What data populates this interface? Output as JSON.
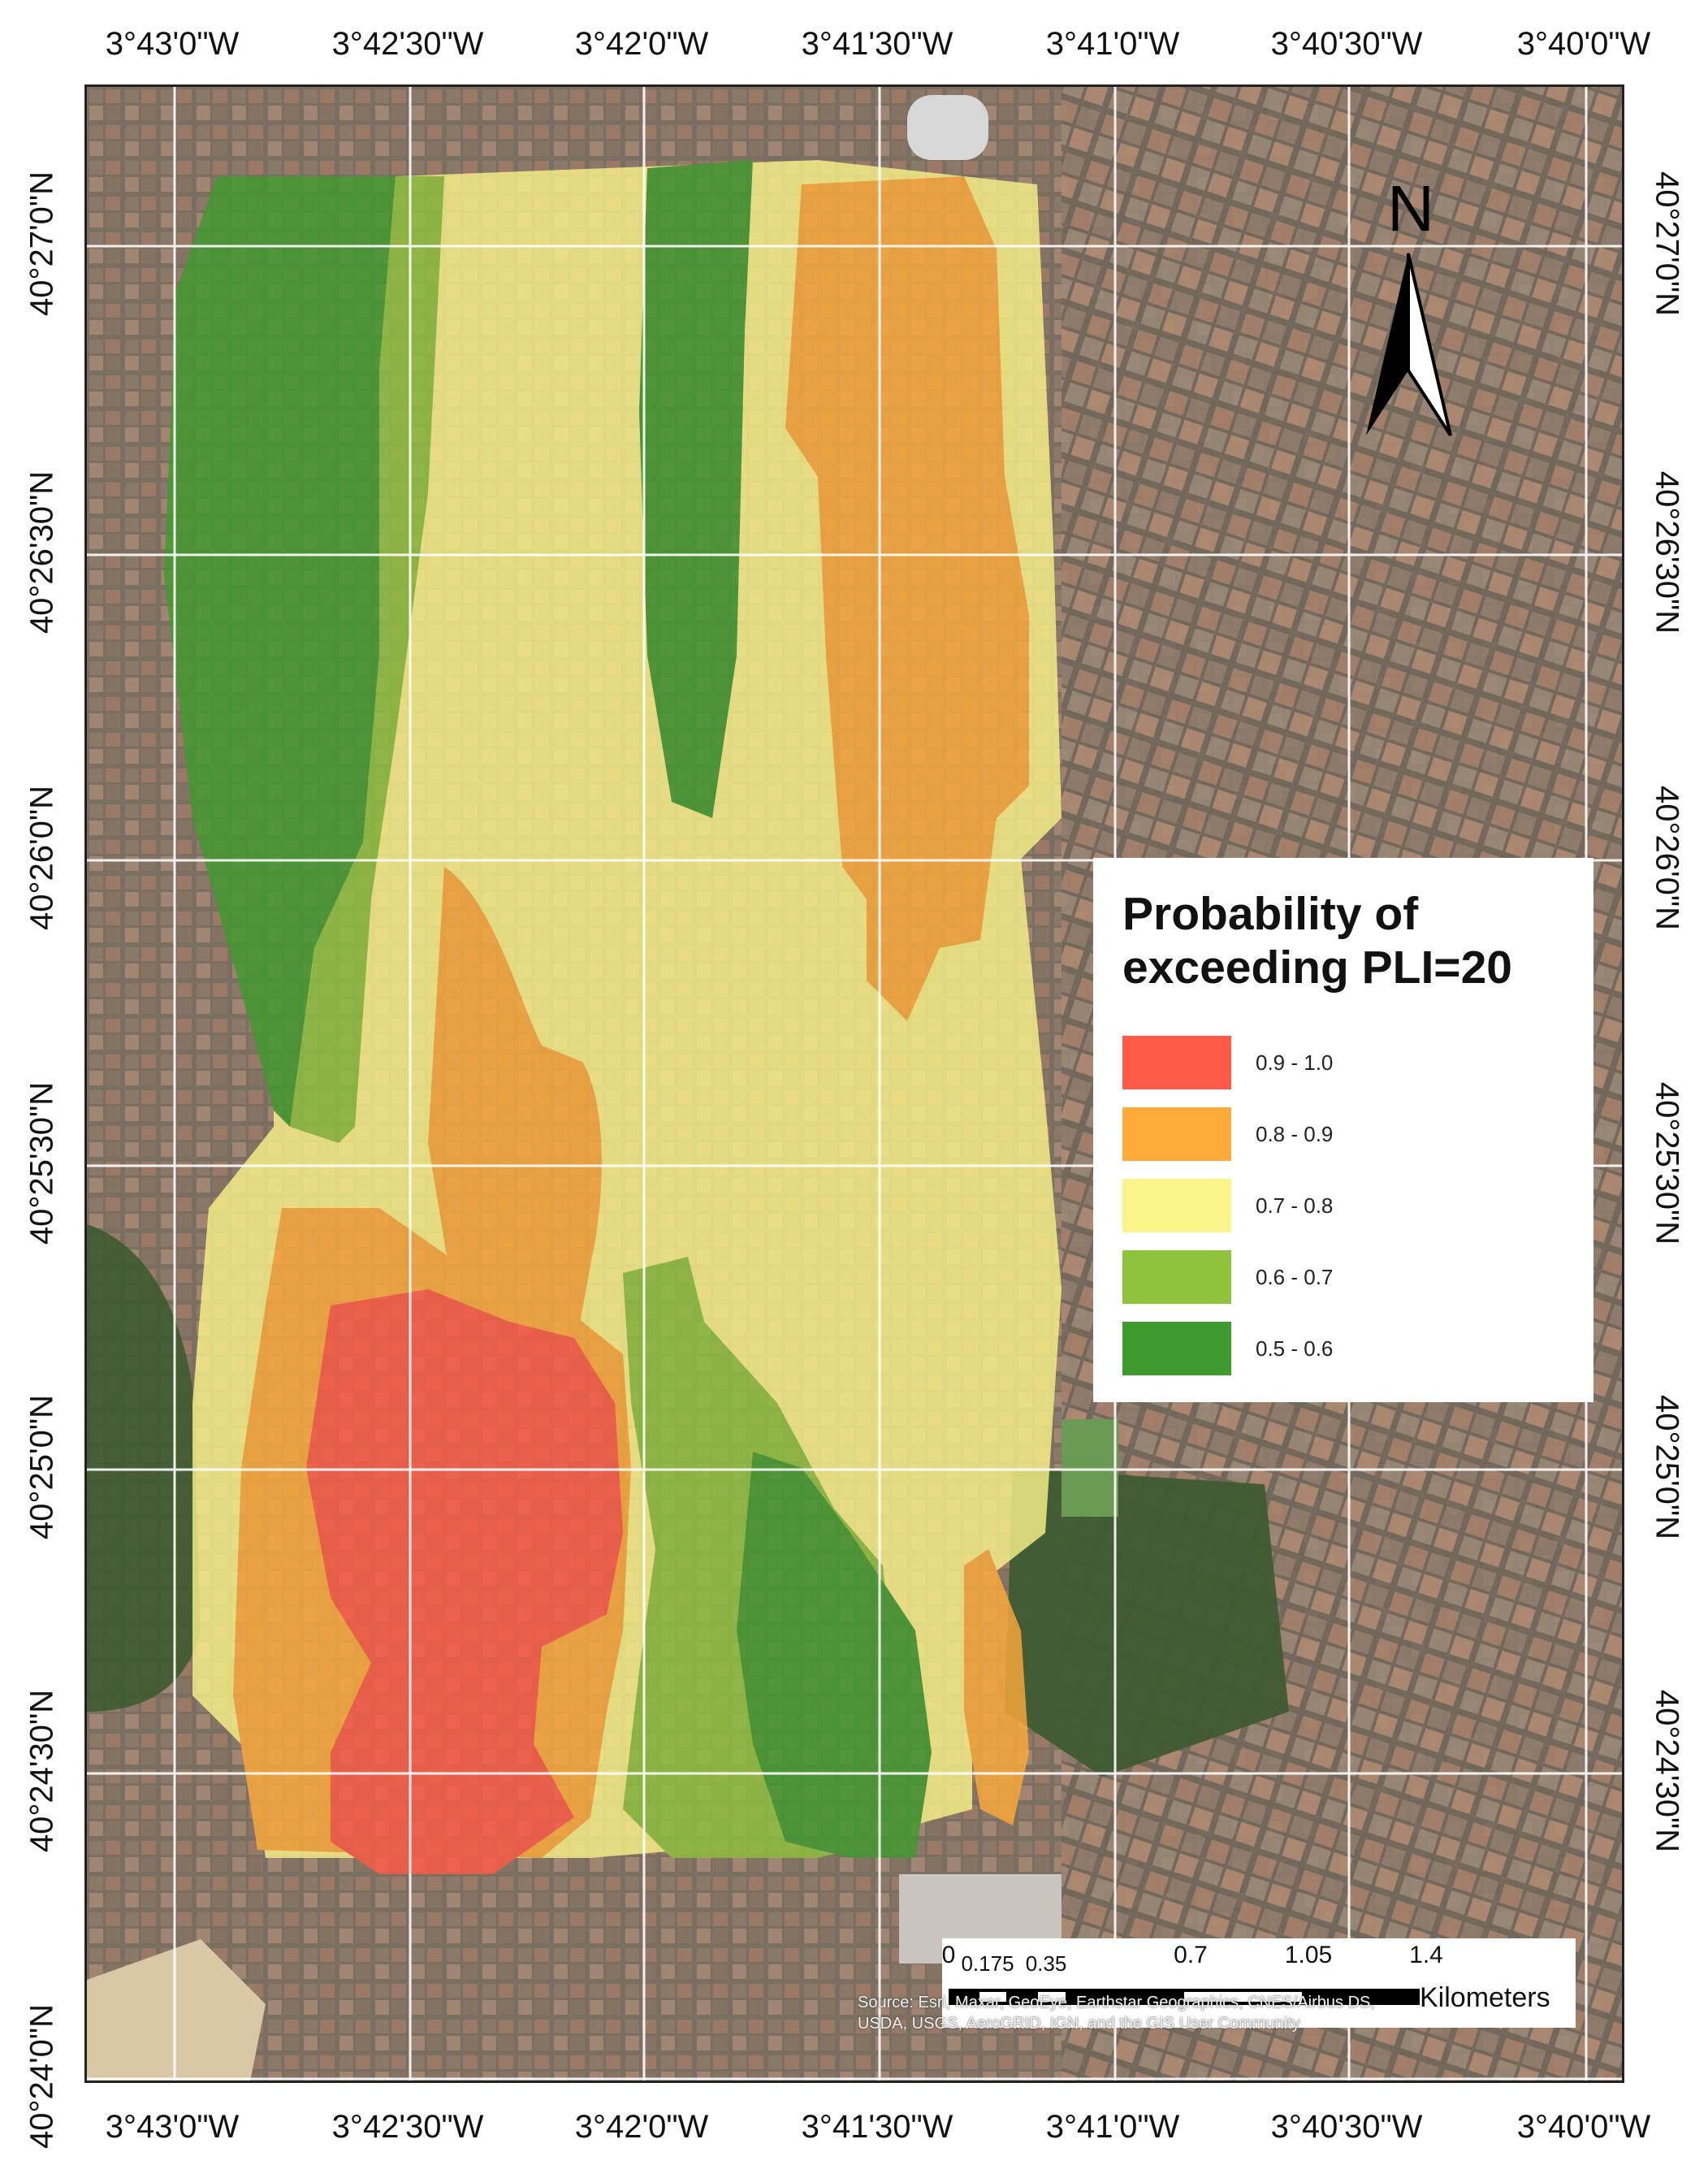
{
  "top_labels": [
    "3°43'0\"W",
    "3°42'30\"W",
    "3°42'0\"W",
    "3°41'30\"W",
    "3°41'0\"W",
    "3°40'30\"W",
    "3°40'0\"W"
  ],
  "bottom_labels": [
    "3°43'0\"W",
    "3°42'30\"W",
    "3°42'0\"W",
    "3°41'30\"W",
    "3°41'0\"W",
    "3°40'30\"W",
    "3°40'0\"W"
  ],
  "left_labels": [
    "40°27'0\"N",
    "40°26'30\"N",
    "40°26'0\"N",
    "40°25'30\"N",
    "40°25'0\"N",
    "40°24'30\"N",
    "40°24'0\"N"
  ],
  "right_labels": [
    "40°27'0\"N",
    "40°26'30\"N",
    "40°26'0\"N",
    "40°25'30\"N",
    "40°25'0\"N",
    "40°24'30\"N"
  ],
  "north_arrow": {
    "label": "N",
    "icon": "north-arrow-icon"
  },
  "legend": {
    "title_line1": "Probability of",
    "title_line2": "exceeding PLI=20",
    "classes": [
      {
        "label": "0.9 - 1.0",
        "color": "#ff5a45"
      },
      {
        "label": "0.8 - 0.9",
        "color": "#ffab3a"
      },
      {
        "label": "0.7 - 0.8",
        "color": "#fbf48a"
      },
      {
        "label": "0.6 - 0.7",
        "color": "#8fc23d"
      },
      {
        "label": "0.5 - 0.6",
        "color": "#3f9a2d"
      }
    ]
  },
  "scale_bar": {
    "ticks": [
      "0",
      "0.175",
      "0.35",
      "0.7",
      "1.05",
      "1.4"
    ],
    "units": "Kilometers"
  },
  "attribution": {
    "line1": "Source: Esri, Maxar, GeoEye, Earthstar Geographics, CNES/Airbus DS,",
    "line2": "USDA, USGS, AeroGRID, IGN, and the GIS User Community"
  },
  "colors": {
    "basemap": "#7d7466",
    "park": "#3e5a30",
    "grid": "#ffffff"
  }
}
